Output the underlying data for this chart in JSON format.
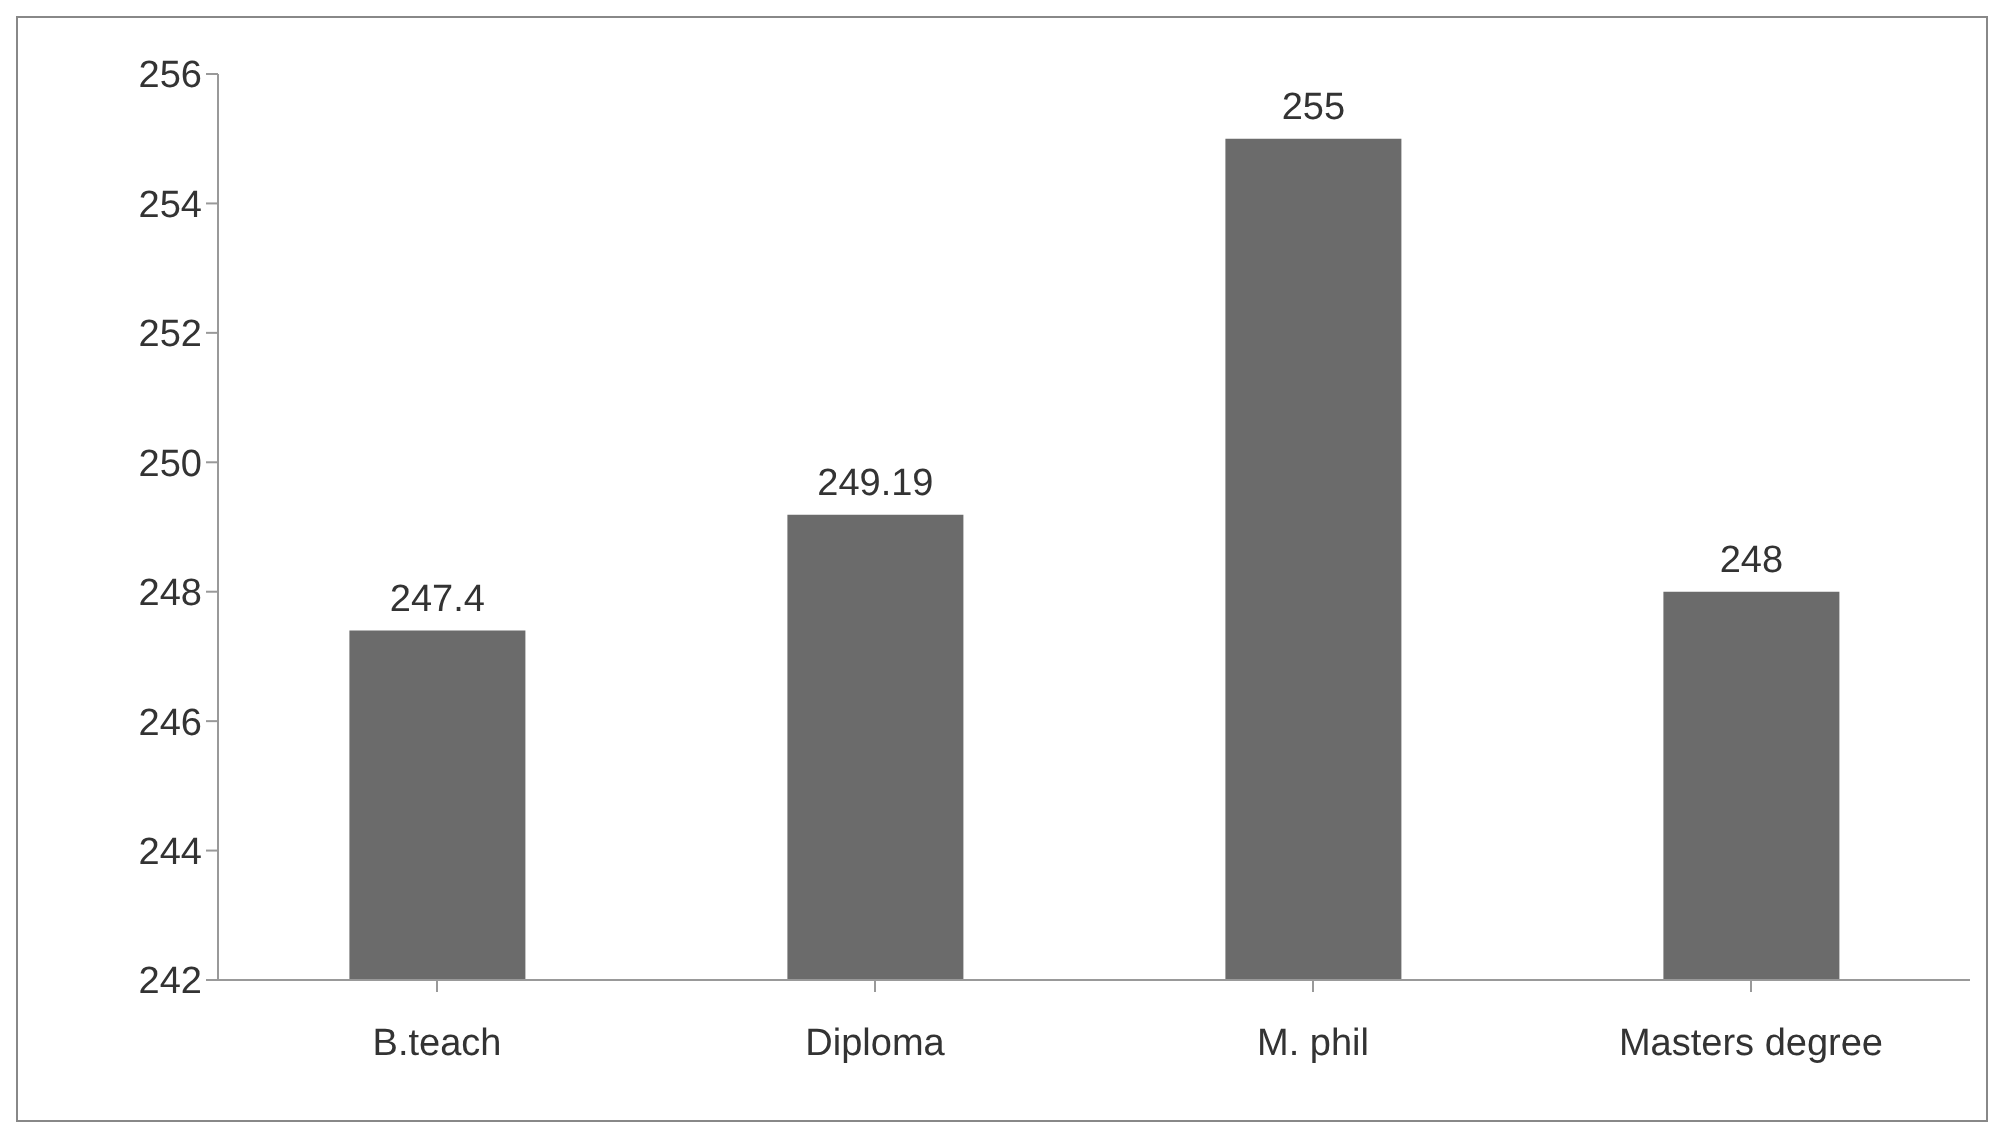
{
  "chart_data": {
    "type": "bar",
    "categories": [
      "B.teach",
      "Diploma",
      "M. phil",
      "Masters degree"
    ],
    "values": [
      247.4,
      249.19,
      255,
      248
    ],
    "color": "#6b6b6b",
    "ylim": [
      242,
      256
    ],
    "yticks": [
      242,
      244,
      246,
      248,
      250,
      252,
      254,
      256
    ],
    "data_labels": true,
    "grid": false,
    "legend": false
  }
}
